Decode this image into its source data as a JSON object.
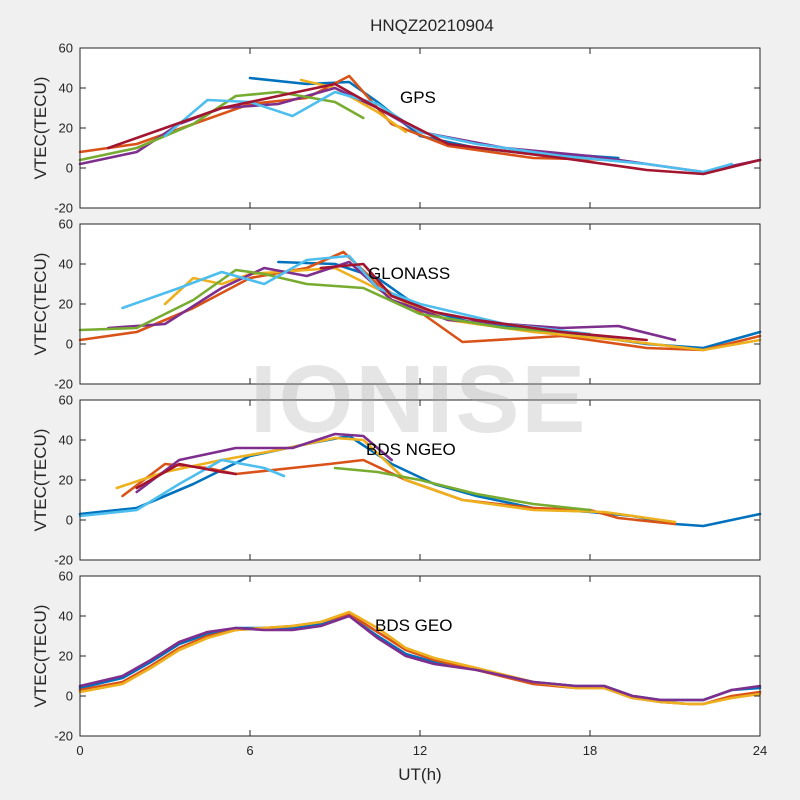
{
  "figure_title": "HNQZ20210904",
  "watermark": "IONISE",
  "chart_data": [
    {
      "type": "line",
      "annotation": "GPS",
      "ylabel": "VTEC(TECU)",
      "xlabel": "",
      "xlim": [
        0,
        24
      ],
      "ylim": [
        -20,
        60
      ],
      "xticks": [
        0,
        6,
        12,
        18,
        24
      ],
      "yticks": [
        -20,
        0,
        20,
        40,
        60
      ],
      "series": [
        {
          "color": "#0072BD",
          "x": [
            6,
            8,
            9.5,
            10.5,
            12,
            14,
            16,
            18,
            19
          ],
          "y": [
            45,
            42,
            43,
            33,
            16,
            10,
            7,
            6,
            5
          ]
        },
        {
          "color": "#D95319",
          "x": [
            0,
            2,
            4,
            6,
            8,
            9.5,
            11,
            13,
            16,
            19
          ],
          "y": [
            8,
            12,
            22,
            32,
            35,
            46,
            22,
            11,
            5,
            4
          ]
        },
        {
          "color": "#EDB120",
          "x": [
            7.8,
            9,
            10.5,
            11.5
          ],
          "y": [
            44,
            40,
            28,
            18
          ]
        },
        {
          "color": "#7E2F8E",
          "x": [
            0,
            2,
            3.5,
            5,
            7,
            9,
            10.5,
            12,
            15,
            18,
            20,
            22,
            24
          ],
          "y": [
            2,
            8,
            22,
            30,
            32,
            40,
            30,
            18,
            10,
            6,
            2,
            -2,
            4
          ]
        },
        {
          "color": "#77AC30",
          "x": [
            0,
            2,
            4,
            5.5,
            7,
            9,
            10
          ],
          "y": [
            4,
            10,
            22,
            36,
            38,
            33,
            25
          ]
        },
        {
          "color": "#4DBEEE",
          "x": [
            3,
            4.5,
            6,
            7.5,
            9,
            10.5,
            12,
            14,
            17,
            20,
            22,
            23
          ],
          "y": [
            16,
            34,
            33,
            26,
            38,
            32,
            18,
            12,
            6,
            2,
            -2,
            2
          ]
        },
        {
          "color": "#A2142F",
          "x": [
            1,
            3,
            5,
            7,
            9,
            10.5,
            13,
            17,
            20,
            22,
            24
          ],
          "y": [
            10,
            20,
            30,
            36,
            42,
            30,
            12,
            5,
            -1,
            -3,
            4
          ]
        }
      ]
    },
    {
      "type": "line",
      "annotation": "GLONASS",
      "ylabel": "VTEC(TECU)",
      "xlabel": "",
      "xlim": [
        0,
        24
      ],
      "ylim": [
        -20,
        60
      ],
      "xticks": [
        0,
        6,
        12,
        18,
        24
      ],
      "yticks": [
        -20,
        0,
        20,
        40,
        60
      ],
      "series": [
        {
          "color": "#0072BD",
          "x": [
            7,
            9,
            10.5,
            12,
            14,
            17,
            20,
            22,
            24
          ],
          "y": [
            41,
            40,
            33,
            18,
            10,
            6,
            0,
            -2,
            6
          ]
        },
        {
          "color": "#D95319",
          "x": [
            0,
            2,
            4,
            6,
            8,
            9.3,
            10.5,
            12,
            13.5,
            17,
            20,
            22,
            24
          ],
          "y": [
            2,
            6,
            18,
            33,
            38,
            46,
            30,
            16,
            1,
            4,
            -2,
            -3,
            4
          ]
        },
        {
          "color": "#EDB120",
          "x": [
            3,
            4,
            5,
            6,
            9,
            11,
            13,
            16,
            19,
            22,
            24
          ],
          "y": [
            20,
            33,
            30,
            35,
            38,
            24,
            12,
            6,
            2,
            -3,
            2
          ]
        },
        {
          "color": "#7E2F8E",
          "x": [
            1,
            3,
            5,
            6.5,
            8,
            9.5,
            11,
            13,
            17,
            19,
            21
          ],
          "y": [
            8,
            10,
            28,
            38,
            34,
            41,
            22,
            12,
            8,
            9,
            2
          ]
        },
        {
          "color": "#77AC30",
          "x": [
            0,
            2,
            4,
            5.5,
            6.5,
            8,
            10,
            12,
            15,
            18
          ],
          "y": [
            7,
            8,
            22,
            37,
            35,
            30,
            28,
            15,
            8,
            5
          ]
        },
        {
          "color": "#4DBEEE",
          "x": [
            1.5,
            3.5,
            5,
            6.5,
            8,
            9.5,
            10.5,
            12,
            15,
            18
          ],
          "y": [
            18,
            28,
            36,
            30,
            42,
            44,
            28,
            20,
            10,
            5
          ]
        },
        {
          "color": "#A2142F",
          "x": [
            8.5,
            10,
            11,
            12.5,
            14,
            17,
            20
          ],
          "y": [
            38,
            40,
            24,
            16,
            12,
            6,
            2
          ]
        }
      ]
    },
    {
      "type": "line",
      "annotation": "BDS NGEO",
      "ylabel": "VTEC(TECU)",
      "xlabel": "",
      "xlim": [
        0,
        24
      ],
      "ylim": [
        -20,
        60
      ],
      "xticks": [
        0,
        6,
        12,
        18,
        24
      ],
      "yticks": [
        -20,
        0,
        20,
        40,
        60
      ],
      "series": [
        {
          "color": "#0072BD",
          "x": [
            0,
            2,
            4,
            6,
            8,
            9.5,
            11,
            12.5,
            14,
            16,
            18,
            19.5,
            21,
            22,
            23,
            24
          ],
          "y": [
            3,
            6,
            18,
            32,
            38,
            42,
            28,
            18,
            12,
            6,
            4,
            2,
            -2,
            -3,
            0,
            3
          ]
        },
        {
          "color": "#D95319",
          "x": [
            1.5,
            3,
            4.5,
            5.5,
            8.8,
            10,
            11.5,
            13.5,
            16,
            18,
            19,
            21
          ],
          "y": [
            12,
            28,
            26,
            23,
            28,
            30,
            20,
            10,
            6,
            5,
            1,
            -2
          ]
        },
        {
          "color": "#EDB120",
          "x": [
            1.3,
            3,
            5,
            7,
            9,
            10,
            11.5,
            13.5,
            16,
            18.5,
            21
          ],
          "y": [
            16,
            24,
            30,
            35,
            41,
            40,
            20,
            10,
            5,
            4,
            -1
          ]
        },
        {
          "color": "#7E2F8E",
          "x": [
            2,
            3.5,
            5.5,
            7.5,
            9,
            10,
            11
          ],
          "y": [
            14,
            30,
            36,
            36,
            43,
            42,
            30
          ]
        },
        {
          "color": "#77AC30",
          "x": [
            9,
            10.5,
            12,
            14,
            16,
            18
          ],
          "y": [
            26,
            24,
            20,
            13,
            8,
            5
          ]
        },
        {
          "color": "#4DBEEE",
          "x": [
            0,
            2,
            3.5,
            5,
            6.5,
            7.2
          ],
          "y": [
            2,
            5,
            18,
            30,
            26,
            22
          ]
        },
        {
          "color": "#A2142F",
          "x": [
            2,
            3.5,
            5,
            5.5
          ],
          "y": [
            16,
            28,
            24,
            23
          ]
        }
      ]
    },
    {
      "type": "line",
      "annotation": "BDS GEO",
      "ylabel": "VTEC(TECU)",
      "xlabel": "UT(h)",
      "xlim": [
        0,
        24
      ],
      "ylim": [
        -20,
        60
      ],
      "xticks": [
        0,
        6,
        12,
        18,
        24
      ],
      "yticks": [
        -20,
        0,
        20,
        40,
        60
      ],
      "series": [
        {
          "color": "#0072BD",
          "x": [
            0,
            1.5,
            2.5,
            3.5,
            4.5,
            5.5,
            6.5,
            7.5,
            8.5,
            9.5,
            10.5,
            11.5,
            12.5,
            14,
            16,
            17.5,
            18.5,
            19.5,
            20.5,
            21.5,
            22,
            23,
            24
          ],
          "y": [
            4,
            9,
            17,
            26,
            31,
            34,
            34,
            34,
            36,
            40,
            30,
            21,
            17,
            13,
            7,
            5,
            5,
            0,
            -2,
            -2,
            -2,
            3,
            4
          ]
        },
        {
          "color": "#D95319",
          "x": [
            0,
            1.5,
            2.5,
            3.5,
            4.5,
            5.5,
            6.5,
            7.5,
            8.5,
            9.5,
            10.5,
            11.5,
            12.5,
            14,
            16,
            17.5,
            18.5,
            19.5,
            20.5,
            21.5,
            22,
            23,
            24
          ],
          "y": [
            3,
            7,
            15,
            24,
            30,
            33,
            34,
            35,
            37,
            41,
            32,
            23,
            18,
            13,
            6,
            4,
            4,
            -1,
            -3,
            -4,
            -4,
            0,
            2
          ]
        },
        {
          "color": "#EDB120",
          "x": [
            0,
            1.5,
            2.5,
            3.5,
            4.5,
            5.5,
            6.5,
            7.5,
            8.5,
            9.5,
            10.5,
            11.5,
            12.5,
            14,
            16,
            17.5,
            18.5,
            19.5,
            20.5,
            21.5,
            22,
            23,
            24
          ],
          "y": [
            2,
            6,
            14,
            23,
            29,
            33,
            34,
            35,
            37,
            42,
            34,
            24,
            19,
            14,
            7,
            4,
            4,
            -1,
            -3,
            -4,
            -4,
            -1,
            1
          ]
        },
        {
          "color": "#7E2F8E",
          "x": [
            0,
            1.5,
            2.5,
            3.5,
            4.5,
            5.5,
            6.5,
            7.5,
            8.5,
            9.5,
            10.5,
            11.5,
            12.5,
            14,
            16,
            17.5,
            18.5,
            19.5,
            20.5,
            21.5,
            22,
            23,
            24
          ],
          "y": [
            5,
            10,
            18,
            27,
            32,
            34,
            33,
            33,
            35,
            40,
            29,
            20,
            16,
            13,
            7,
            5,
            5,
            0,
            -2,
            -2,
            -2,
            3,
            5
          ]
        }
      ]
    }
  ]
}
